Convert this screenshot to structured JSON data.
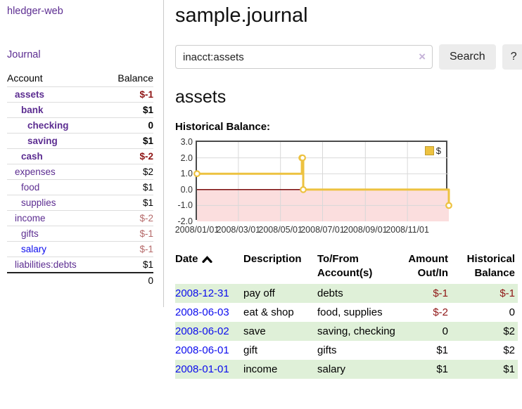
{
  "sidebar": {
    "brand": "hledger-web",
    "journal_label": "Journal",
    "accounts_table": {
      "account_header": "Account",
      "balance_header": "Balance",
      "rows": [
        {
          "name": "assets",
          "balance": "$-1",
          "level": 1,
          "bold": true,
          "link_color": "purple"
        },
        {
          "name": "bank",
          "balance": "$1",
          "level": 2,
          "bold": true,
          "link_color": "purple"
        },
        {
          "name": "checking",
          "balance": "0",
          "level": 3,
          "bold": true,
          "link_color": "purple"
        },
        {
          "name": "saving",
          "balance": "$1",
          "level": 3,
          "bold": true,
          "link_color": "purple"
        },
        {
          "name": "cash",
          "balance": "$-2",
          "level": 2,
          "bold": true,
          "link_color": "purple"
        },
        {
          "name": "expenses",
          "balance": "$2",
          "level": 1,
          "bold": false,
          "link_color": "purple"
        },
        {
          "name": "food",
          "balance": "$1",
          "level": 2,
          "bold": false,
          "link_color": "purple"
        },
        {
          "name": "supplies",
          "balance": "$1",
          "level": 2,
          "bold": false,
          "link_color": "purple"
        },
        {
          "name": "income",
          "balance": "$-2",
          "level": 1,
          "bold": false,
          "link_color": "purple"
        },
        {
          "name": "gifts",
          "balance": "$-1",
          "level": 2,
          "bold": false,
          "link_color": "purple"
        },
        {
          "name": "salary",
          "balance": "$-1",
          "level": 2,
          "bold": false,
          "link_color": "blue"
        },
        {
          "name": "liabilities:debts",
          "balance": "$1",
          "level": 1,
          "bold": false,
          "link_color": "purple"
        }
      ],
      "total": "0"
    }
  },
  "main": {
    "title": "sample.journal",
    "search": {
      "value": "inacct:assets",
      "clear_icon": "×",
      "button_label": "Search",
      "help_label": "?"
    },
    "account_heading": "assets",
    "chart_label": "Historical Balance:"
  },
  "chart_data": {
    "type": "line",
    "step": true,
    "title": "Historical Balance",
    "x_range": [
      "2008-01-01",
      "2008-12-31"
    ],
    "ylim": [
      -2,
      3
    ],
    "grid": true,
    "legend": {
      "label": "$",
      "position": "top-right",
      "swatch_color": "#edc240"
    },
    "series": [
      {
        "name": "$",
        "color": "#edc240",
        "marker": "open-circle",
        "points": [
          [
            "2008-01-01",
            1
          ],
          [
            "2008-06-01",
            2
          ],
          [
            "2008-06-02",
            2
          ],
          [
            "2008-06-03",
            0
          ],
          [
            "2008-12-31",
            -1
          ]
        ]
      }
    ],
    "y_ticks": [
      {
        "v": 3,
        "label": "3.0"
      },
      {
        "v": 2,
        "label": "2.0"
      },
      {
        "v": 1,
        "label": "1.0"
      },
      {
        "v": 0,
        "label": "0.0"
      },
      {
        "v": -1,
        "label": "-1.0"
      },
      {
        "v": -2,
        "label": "-2.0"
      }
    ],
    "x_ticks": [
      {
        "date": "2008-01-01",
        "label": "2008/01/01"
      },
      {
        "date": "2008-03-01",
        "label": "2008/03/01"
      },
      {
        "date": "2008-05-01",
        "label": "2008/05/01"
      },
      {
        "date": "2008-07-01",
        "label": "2008/07/01"
      },
      {
        "date": "2008-09-01",
        "label": "2008/09/01"
      },
      {
        "date": "2008-11-01",
        "label": "2008/11/01"
      }
    ],
    "colors": {
      "grid_line": "#d8d8d8",
      "plot_border": "#4a4a4a",
      "negative_fill": "#fbdede",
      "zero_line": "#7a0c0c",
      "marker_fill": "#ffffff"
    }
  },
  "register": {
    "headers": [
      {
        "key": "date",
        "label": "Date",
        "align": "left",
        "sort_icon": "chevron-up"
      },
      {
        "key": "description",
        "label": "Description",
        "align": "left"
      },
      {
        "key": "accounts",
        "label": "To/From Account(s)",
        "align": "left"
      },
      {
        "key": "amount",
        "label": "Amount Out/In",
        "align": "right"
      },
      {
        "key": "balance",
        "label": "Historical Balance",
        "align": "right"
      }
    ],
    "rows": [
      {
        "date": "2008-12-31",
        "description": "pay off",
        "accounts": "debts",
        "amount": "$-1",
        "balance": "$-1"
      },
      {
        "date": "2008-06-03",
        "description": "eat & shop",
        "accounts": "food, supplies",
        "amount": "$-2",
        "balance": "0"
      },
      {
        "date": "2008-06-02",
        "description": "save",
        "accounts": "saving, checking",
        "amount": "0",
        "balance": "$2"
      },
      {
        "date": "2008-06-01",
        "description": "gift",
        "accounts": "gifts",
        "amount": "$1",
        "balance": "$2"
      },
      {
        "date": "2008-01-01",
        "description": "income",
        "accounts": "salary",
        "amount": "$1",
        "balance": "$1"
      }
    ]
  }
}
